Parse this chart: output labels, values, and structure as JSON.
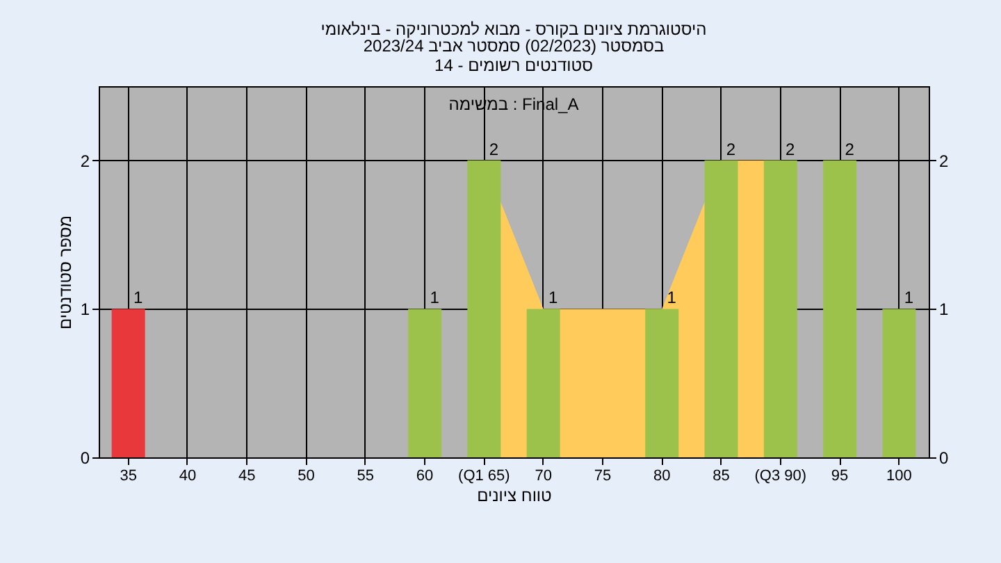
{
  "chart_data": {
    "type": "bar",
    "title": "היסטוגרמת ציונים בקורס - מבוא למכטרוניקה - בינלאומי",
    "subtitle": "בסמסטר  (02/2023)  סמסטר אביב 2023/24\nסטודנטים רשומים - 14",
    "xlabel": "טווח ציונים",
    "ylabel": "מספר סטודנטים",
    "annotations": [
      "במשימה : Final_A"
    ],
    "categories": [
      "35",
      "40",
      "45",
      "50",
      "55",
      "60",
      "(Q1 65)",
      "70",
      "75",
      "80",
      "85",
      "(Q3 90)",
      "95",
      "100"
    ],
    "series": [
      {
        "type": "area",
        "color": "#ffcc5c",
        "values": [
          null,
          null,
          null,
          null,
          null,
          null,
          2,
          1,
          1,
          1,
          2,
          2,
          null,
          null
        ]
      },
      {
        "colors": [
          "#e8383b",
          "#9cc24c",
          "#9cc24c",
          "#9cc24c",
          "#9cc24c",
          "#9cc24c",
          "#9cc24c",
          "#9cc24c",
          "#9cc24c",
          "#9cc24c",
          "#9cc24c",
          "#9cc24c",
          "#9cc24c",
          "#9cc24c"
        ],
        "values": [
          1,
          null,
          null,
          null,
          null,
          1,
          2,
          1,
          null,
          1,
          2,
          2,
          2,
          1
        ],
        "value_labels": [
          "1",
          null,
          null,
          null,
          null,
          "1",
          "2",
          "1",
          null,
          "1",
          "2",
          "2",
          "2",
          "1"
        ]
      }
    ],
    "ylim": [
      0,
      2.5
    ],
    "yticks": [
      0,
      1,
      2
    ],
    "y2lim": [
      0,
      2.5
    ],
    "y2ticks": [
      0,
      1,
      2
    ],
    "grid": true
  }
}
